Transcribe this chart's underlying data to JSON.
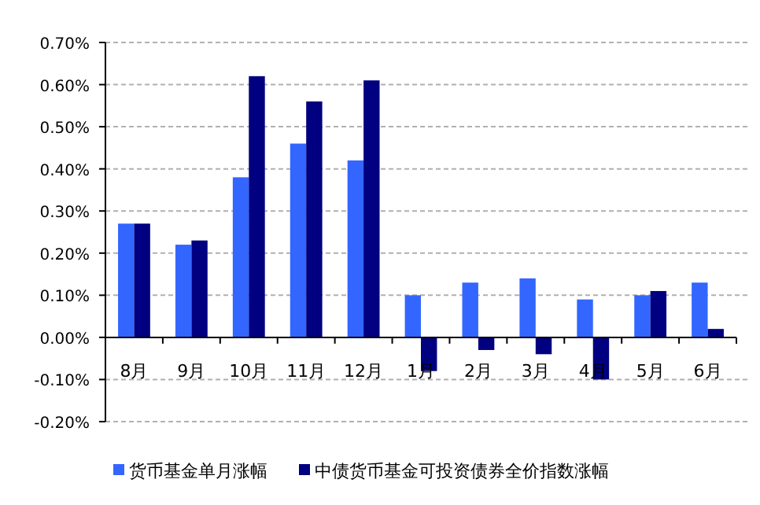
{
  "chart_data": {
    "type": "bar",
    "categories": [
      "8月",
      "9月",
      "10月",
      "11月",
      "12月",
      "1月",
      "2月",
      "3月",
      "4月",
      "5月",
      "6月"
    ],
    "series": [
      {
        "name": "货币基金单月涨幅",
        "color": "#3366ff",
        "values": [
          0.27,
          0.22,
          0.38,
          0.46,
          0.42,
          0.1,
          0.13,
          0.14,
          0.09,
          0.1,
          0.13
        ]
      },
      {
        "name": "中债货币基金可投资债券全价指数涨幅",
        "color": "#000080",
        "values": [
          0.27,
          0.23,
          0.62,
          0.56,
          0.61,
          -0.08,
          -0.03,
          -0.04,
          -0.1,
          0.11,
          0.02
        ]
      }
    ],
    "ylim": [
      -0.2,
      0.7
    ],
    "yticks": [
      {
        "value": -0.2,
        "label": "-0.20%"
      },
      {
        "value": -0.1,
        "label": "-0.10%"
      },
      {
        "value": 0,
        "label": "0.00%"
      },
      {
        "value": 0.1,
        "label": "0.10%"
      },
      {
        "value": 0.2,
        "label": "0.20%"
      },
      {
        "value": 0.3,
        "label": "0.30%"
      },
      {
        "value": 0.4,
        "label": "0.40%"
      },
      {
        "value": 0.5,
        "label": "0.50%"
      },
      {
        "value": 0.6,
        "label": "0.60%"
      },
      {
        "value": 0.7,
        "label": "0.70%"
      }
    ],
    "grid": "y",
    "legend": "bottom"
  }
}
